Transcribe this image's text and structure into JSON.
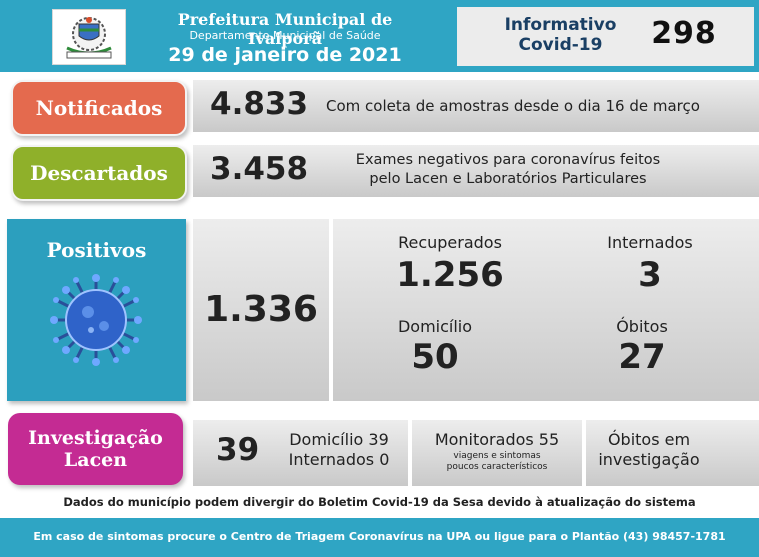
{
  "header": {
    "title": "Prefeitura Municipal de Ivaiporã",
    "subtitle": "Departamento Municipal de Saúde",
    "date": "29 de janeiro de 2021",
    "info_label_line1": "Informativo",
    "info_label_line2": "Covid-19",
    "bulletin_number": "298"
  },
  "notificados": {
    "label": "Notificados",
    "value": "4.833",
    "desc": "Com coleta de amostras desde o dia 16 de março"
  },
  "descartados": {
    "label": "Descartados",
    "value": "3.458",
    "desc_line1": "Exames negativos para coronavírus feitos",
    "desc_line2": "pelo Lacen e Laboratórios Particulares"
  },
  "positivos": {
    "label": "Positivos",
    "value": "1.336",
    "recuperados_label": "Recuperados",
    "recuperados_value": "1.256",
    "internados_label": "Internados",
    "internados_value": "3",
    "domicilio_label": "Domicílio",
    "domicilio_value": "50",
    "obitos_label": "Óbitos",
    "obitos_value": "27"
  },
  "investigacao": {
    "label_line1": "Investigação",
    "label_line2": "Lacen",
    "value": "39",
    "domicilio": "Domicílio 39",
    "internados": "Internados 0",
    "monitorados": "Monitorados 55",
    "monitorados_note_line1": "viagens e sintomas",
    "monitorados_note_line2": "poucos característicos",
    "obitos_line1": "Óbitos em",
    "obitos_line2": "investigação"
  },
  "disclaimer": "Dados do município podem divergir do Boletim Covid-19 da Sesa devido à atualização do sistema",
  "footer": "Em caso de sintomas procure o Centro de Triagem Coronavírus na UPA ou ligue para o Plantão (43) 98457-1781",
  "colors": {
    "header_blue": "#2fa5c4",
    "notificados": "#e46a4e",
    "descartados": "#8fb02a",
    "positivos": "#2c9fbe",
    "investigacao": "#c42b93",
    "navy": "#1a3f64"
  },
  "icons": {
    "logo": "municipal-coat-of-arms",
    "virus": "coronavirus-icon"
  }
}
